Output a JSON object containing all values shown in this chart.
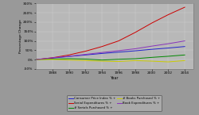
{
  "title": "",
  "xlabel": "Year",
  "ylabel": "Percentage Change",
  "background_color": "#999999",
  "plot_bg_color": "#b8b8b8",
  "years": [
    1986,
    1988,
    1990,
    1992,
    1994,
    1996,
    1998,
    2000,
    2002,
    2004
  ],
  "series": {
    "Consumer Price Index % +": {
      "color": "#2222cc",
      "values": [
        0,
        8,
        17,
        25,
        33,
        40,
        47,
        55,
        62,
        70
      ]
    },
    "Serial Expenditures % +": {
      "color": "#cc0000",
      "values": [
        0,
        10,
        25,
        45,
        70,
        100,
        145,
        195,
        240,
        280
      ]
    },
    "# Serials Purchased % +": {
      "color": "#008800",
      "values": [
        0,
        3,
        5,
        3,
        -2,
        2,
        5,
        12,
        18,
        25
      ]
    },
    "# Books Purchased % +": {
      "color": "#cccc00",
      "values": [
        0,
        1,
        -2,
        -5,
        -8,
        -10,
        -5,
        -8,
        -12,
        -5
      ]
    },
    "Book Expenditures % +": {
      "color": "#8833bb",
      "values": [
        0,
        10,
        18,
        28,
        38,
        48,
        58,
        72,
        85,
        100
      ]
    }
  },
  "ylim": [
    -50,
    300
  ],
  "yticks": [
    -50,
    0,
    50,
    100,
    150,
    200,
    250,
    300
  ],
  "ytick_labels": [
    "-50%",
    "0%",
    "50%",
    "100%",
    "150%",
    "200%",
    "250%",
    "300%"
  ],
  "xticks": [
    1988,
    1990,
    1992,
    1994,
    1996,
    1998,
    2000,
    2002,
    2004
  ],
  "legend_order": [
    "Consumer Price Index % +",
    "Serial Expenditures % +",
    "# Serials Purchased % +",
    "# Books Purchased % +",
    "Book Expenditures % +"
  ],
  "legend_ncol": 2
}
